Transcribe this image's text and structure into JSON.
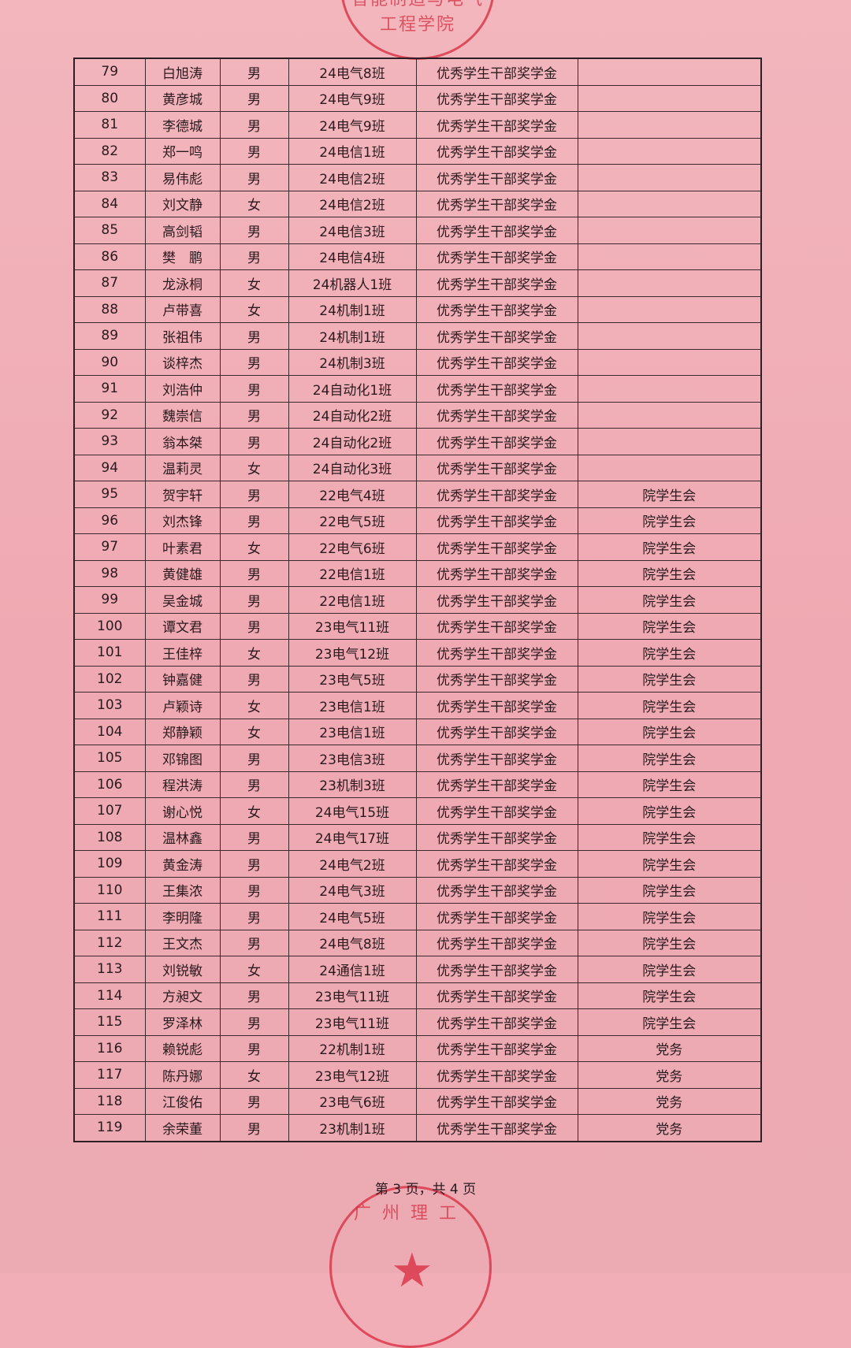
{
  "stamps": {
    "top_text": "智能制造与电气工程学院",
    "bottom_text": "广州理工"
  },
  "table": {
    "rows": [
      [
        "79",
        "白旭涛",
        "男",
        "24电气8班",
        "优秀学生干部奖学金",
        ""
      ],
      [
        "80",
        "黄彦城",
        "男",
        "24电气9班",
        "优秀学生干部奖学金",
        ""
      ],
      [
        "81",
        "李德城",
        "男",
        "24电气9班",
        "优秀学生干部奖学金",
        ""
      ],
      [
        "82",
        "郑一鸣",
        "男",
        "24电信1班",
        "优秀学生干部奖学金",
        ""
      ],
      [
        "83",
        "易伟彪",
        "男",
        "24电信2班",
        "优秀学生干部奖学金",
        ""
      ],
      [
        "84",
        "刘文静",
        "女",
        "24电信2班",
        "优秀学生干部奖学金",
        ""
      ],
      [
        "85",
        "高剑韬",
        "男",
        "24电信3班",
        "优秀学生干部奖学金",
        ""
      ],
      [
        "86",
        "樊　鹏",
        "男",
        "24电信4班",
        "优秀学生干部奖学金",
        ""
      ],
      [
        "87",
        "龙泳桐",
        "女",
        "24机器人1班",
        "优秀学生干部奖学金",
        ""
      ],
      [
        "88",
        "卢带喜",
        "女",
        "24机制1班",
        "优秀学生干部奖学金",
        ""
      ],
      [
        "89",
        "张祖伟",
        "男",
        "24机制1班",
        "优秀学生干部奖学金",
        ""
      ],
      [
        "90",
        "谈梓杰",
        "男",
        "24机制3班",
        "优秀学生干部奖学金",
        ""
      ],
      [
        "91",
        "刘浩仲",
        "男",
        "24自动化1班",
        "优秀学生干部奖学金",
        ""
      ],
      [
        "92",
        "魏崇信",
        "男",
        "24自动化2班",
        "优秀学生干部奖学金",
        ""
      ],
      [
        "93",
        "翁本桀",
        "男",
        "24自动化2班",
        "优秀学生干部奖学金",
        ""
      ],
      [
        "94",
        "温莉灵",
        "女",
        "24自动化3班",
        "优秀学生干部奖学金",
        ""
      ],
      [
        "95",
        "贺宇轩",
        "男",
        "22电气4班",
        "优秀学生干部奖学金",
        "院学生会"
      ],
      [
        "96",
        "刘杰锋",
        "男",
        "22电气5班",
        "优秀学生干部奖学金",
        "院学生会"
      ],
      [
        "97",
        "叶素君",
        "女",
        "22电气6班",
        "优秀学生干部奖学金",
        "院学生会"
      ],
      [
        "98",
        "黄健雄",
        "男",
        "22电信1班",
        "优秀学生干部奖学金",
        "院学生会"
      ],
      [
        "99",
        "吴金城",
        "男",
        "22电信1班",
        "优秀学生干部奖学金",
        "院学生会"
      ],
      [
        "100",
        "谭文君",
        "男",
        "23电气11班",
        "优秀学生干部奖学金",
        "院学生会"
      ],
      [
        "101",
        "王佳梓",
        "女",
        "23电气12班",
        "优秀学生干部奖学金",
        "院学生会"
      ],
      [
        "102",
        "钟嘉健",
        "男",
        "23电气5班",
        "优秀学生干部奖学金",
        "院学生会"
      ],
      [
        "103",
        "卢颖诗",
        "女",
        "23电信1班",
        "优秀学生干部奖学金",
        "院学生会"
      ],
      [
        "104",
        "郑静颖",
        "女",
        "23电信1班",
        "优秀学生干部奖学金",
        "院学生会"
      ],
      [
        "105",
        "邓锦图",
        "男",
        "23电信3班",
        "优秀学生干部奖学金",
        "院学生会"
      ],
      [
        "106",
        "程洪涛",
        "男",
        "23机制3班",
        "优秀学生干部奖学金",
        "院学生会"
      ],
      [
        "107",
        "谢心悦",
        "女",
        "24电气15班",
        "优秀学生干部奖学金",
        "院学生会"
      ],
      [
        "108",
        "温林鑫",
        "男",
        "24电气17班",
        "优秀学生干部奖学金",
        "院学生会"
      ],
      [
        "109",
        "黄金涛",
        "男",
        "24电气2班",
        "优秀学生干部奖学金",
        "院学生会"
      ],
      [
        "110",
        "王集浓",
        "男",
        "24电气3班",
        "优秀学生干部奖学金",
        "院学生会"
      ],
      [
        "111",
        "李明隆",
        "男",
        "24电气5班",
        "优秀学生干部奖学金",
        "院学生会"
      ],
      [
        "112",
        "王文杰",
        "男",
        "24电气8班",
        "优秀学生干部奖学金",
        "院学生会"
      ],
      [
        "113",
        "刘锐敏",
        "女",
        "24通信1班",
        "优秀学生干部奖学金",
        "院学生会"
      ],
      [
        "114",
        "方昶文",
        "男",
        "23电气11班",
        "优秀学生干部奖学金",
        "院学生会"
      ],
      [
        "115",
        "罗泽林",
        "男",
        "23电气11班",
        "优秀学生干部奖学金",
        "院学生会"
      ],
      [
        "116",
        "赖锐彪",
        "男",
        "22机制1班",
        "优秀学生干部奖学金",
        "党务"
      ],
      [
        "117",
        "陈丹娜",
        "女",
        "23电气12班",
        "优秀学生干部奖学金",
        "党务"
      ],
      [
        "118",
        "江俊佑",
        "男",
        "23电气6班",
        "优秀学生干部奖学金",
        "党务"
      ],
      [
        "119",
        "余荣董",
        "男",
        "23机制1班",
        "优秀学生干部奖学金",
        "党务"
      ]
    ]
  },
  "footer": {
    "page_info": "第 3 页，共 4 页"
  }
}
